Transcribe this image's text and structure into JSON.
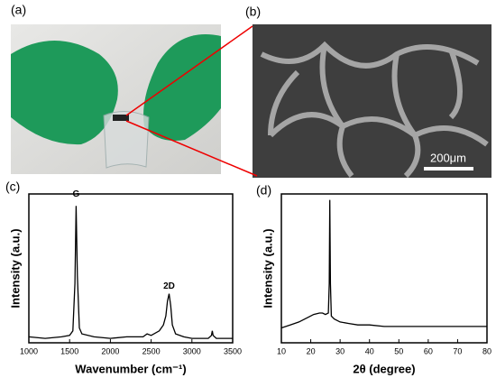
{
  "panels": {
    "a": "(a)",
    "b": "(b)"
  },
  "scale_bar": "200μm",
  "chart_data": [
    {
      "type": "line",
      "panel_label": "(c)",
      "xlabel": "Wavenumber (cm⁻¹)",
      "ylabel": "Intensity (a.u.)",
      "annotations": [
        {
          "text": "G",
          "x": 1580,
          "y": 95
        },
        {
          "text": "2D",
          "x": 2720,
          "y": 33
        }
      ],
      "color": "#000000",
      "x": [
        1000,
        1200,
        1400,
        1500,
        1540,
        1565,
        1580,
        1595,
        1620,
        1650,
        1800,
        2000,
        2200,
        2400,
        2450,
        2500,
        2600,
        2650,
        2680,
        2700,
        2720,
        2740,
        2760,
        2800,
        2900,
        3000,
        3100,
        3200,
        3240,
        3250,
        3260,
        3300,
        3400,
        3500
      ],
      "values": [
        4,
        3,
        4,
        5,
        8,
        40,
        92,
        45,
        10,
        6,
        4,
        3,
        4,
        4,
        6,
        5,
        8,
        12,
        18,
        28,
        33,
        25,
        12,
        6,
        4,
        3,
        3,
        3,
        5,
        8,
        5,
        3,
        3,
        3
      ],
      "xlim": [
        1000,
        3500
      ],
      "xticks": [
        1000,
        1500,
        2000,
        2500,
        3000,
        3500
      ],
      "ylim": [
        0,
        100
      ]
    },
    {
      "type": "line",
      "panel_label": "(d)",
      "xlabel": "2θ (degree)",
      "ylabel": "Intensity (a.u.)",
      "color": "#000000",
      "x": [
        10,
        13,
        16,
        19,
        21,
        23,
        24,
        25,
        26,
        26.3,
        26.5,
        26.7,
        27,
        28,
        30,
        33,
        36,
        40,
        45,
        50,
        55,
        60,
        65,
        70,
        75,
        80
      ],
      "values": [
        10,
        12,
        14,
        17,
        19,
        20,
        20,
        19,
        20,
        40,
        96,
        40,
        18,
        16,
        14,
        13,
        12,
        12,
        11,
        11,
        11,
        11,
        11,
        11,
        11,
        11
      ],
      "xlim": [
        10,
        80
      ],
      "xticks": [
        10,
        20,
        30,
        40,
        50,
        60,
        70,
        80
      ],
      "ylim": [
        0,
        100
      ]
    }
  ]
}
